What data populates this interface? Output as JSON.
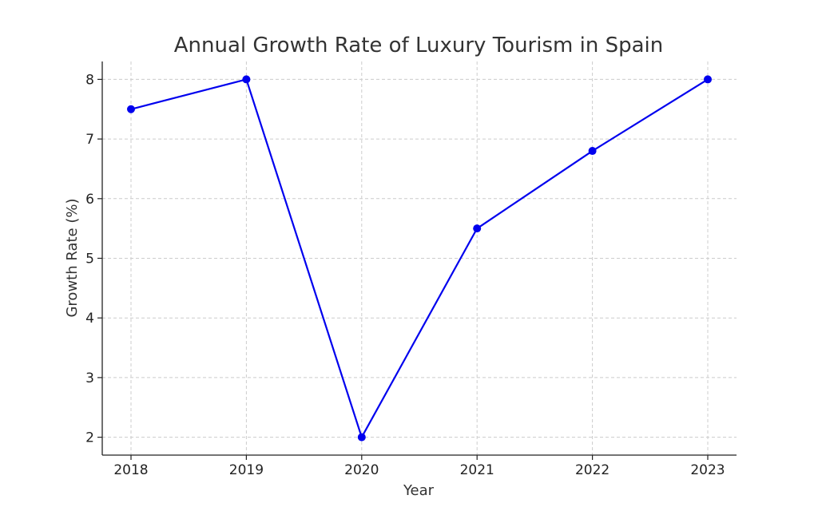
{
  "chart_data": {
    "type": "line",
    "title": "Annual Growth Rate of Luxury Tourism in Spain",
    "xlabel": "Year",
    "ylabel": "Growth Rate (%)",
    "categories": [
      "2018",
      "2019",
      "2020",
      "2021",
      "2022",
      "2023"
    ],
    "series": [
      {
        "name": "Growth Rate",
        "values": [
          7.5,
          8,
          2,
          5.5,
          6.8,
          8
        ]
      }
    ],
    "ylim": [
      1.7,
      8.3
    ],
    "yticks": [
      2,
      3,
      4,
      5,
      6,
      7,
      8
    ],
    "grid": true,
    "line_color": "#0000ee",
    "marker_color": "#0000ee"
  }
}
